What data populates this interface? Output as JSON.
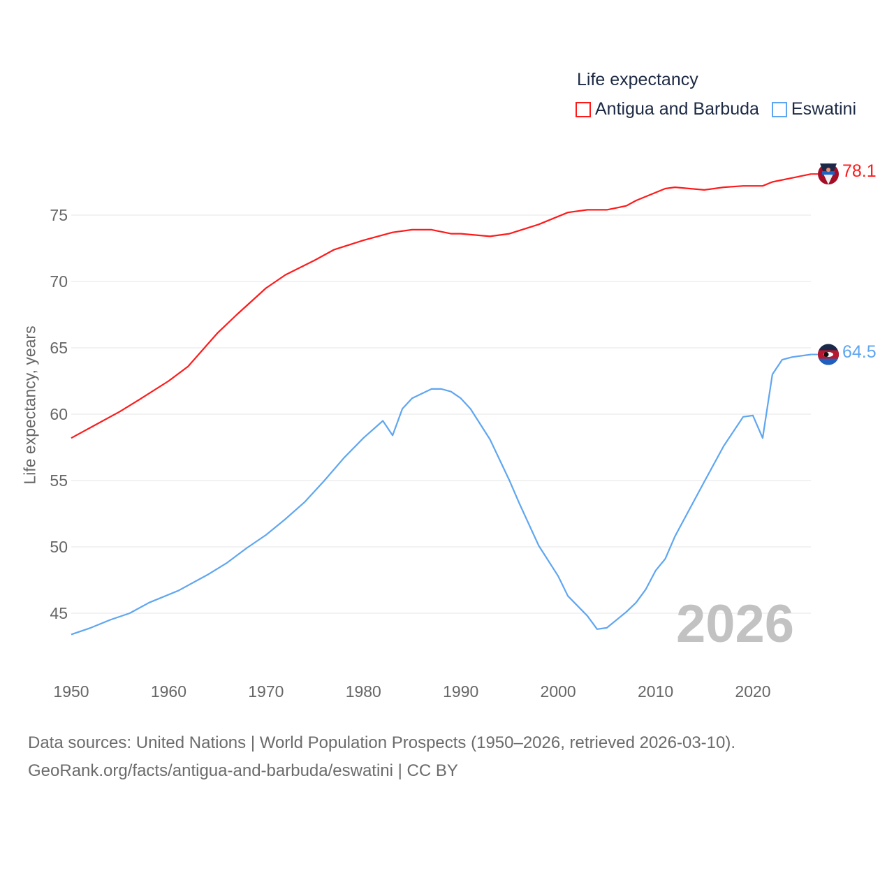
{
  "chart_data": {
    "type": "line",
    "title": "Life expectancy",
    "ylabel": "Life expectancy, years",
    "xlabel": "",
    "xlim": [
      1950,
      2026
    ],
    "ylim": [
      42,
      80
    ],
    "x_ticks": [
      1950,
      1960,
      1970,
      1980,
      1990,
      2000,
      2010,
      2020
    ],
    "y_ticks": [
      45,
      50,
      55,
      60,
      65,
      70,
      75
    ],
    "grid": true,
    "legend_position": "top-right",
    "current_year": "2026",
    "series": [
      {
        "name": "Antigua and Barbuda",
        "color": "#ff1a1a",
        "end_label": "78.1",
        "flag": "antigua-and-barbuda-flag",
        "points": [
          [
            1950,
            58.2
          ],
          [
            1952,
            59.0
          ],
          [
            1955,
            60.2
          ],
          [
            1957,
            61.1
          ],
          [
            1960,
            62.5
          ],
          [
            1962,
            63.6
          ],
          [
            1965,
            66.1
          ],
          [
            1967,
            67.5
          ],
          [
            1970,
            69.5
          ],
          [
            1972,
            70.5
          ],
          [
            1975,
            71.6
          ],
          [
            1977,
            72.4
          ],
          [
            1980,
            73.1
          ],
          [
            1983,
            73.7
          ],
          [
            1985,
            73.9
          ],
          [
            1987,
            73.9
          ],
          [
            1989,
            73.6
          ],
          [
            1990,
            73.6
          ],
          [
            1993,
            73.4
          ],
          [
            1995,
            73.6
          ],
          [
            1998,
            74.3
          ],
          [
            2001,
            75.2
          ],
          [
            2003,
            75.4
          ],
          [
            2005,
            75.4
          ],
          [
            2007,
            75.7
          ],
          [
            2008,
            76.1
          ],
          [
            2011,
            77.0
          ],
          [
            2012,
            77.1
          ],
          [
            2015,
            76.9
          ],
          [
            2017,
            77.1
          ],
          [
            2019,
            77.2
          ],
          [
            2021,
            77.2
          ],
          [
            2022,
            77.5
          ],
          [
            2024,
            77.8
          ],
          [
            2026,
            78.1
          ]
        ]
      },
      {
        "name": "Eswatini",
        "color": "#5fa6f0",
        "end_label": "64.5",
        "flag": "eswatini-flag",
        "points": [
          [
            1950,
            43.4
          ],
          [
            1952,
            43.9
          ],
          [
            1954,
            44.5
          ],
          [
            1956,
            45.0
          ],
          [
            1958,
            45.8
          ],
          [
            1961,
            46.7
          ],
          [
            1964,
            47.9
          ],
          [
            1966,
            48.8
          ],
          [
            1968,
            49.9
          ],
          [
            1970,
            50.9
          ],
          [
            1972,
            52.1
          ],
          [
            1974,
            53.4
          ],
          [
            1976,
            55.0
          ],
          [
            1978,
            56.7
          ],
          [
            1980,
            58.2
          ],
          [
            1982,
            59.5
          ],
          [
            1983,
            58.4
          ],
          [
            1984,
            60.4
          ],
          [
            1985,
            61.2
          ],
          [
            1987,
            61.9
          ],
          [
            1988,
            61.9
          ],
          [
            1989,
            61.7
          ],
          [
            1990,
            61.2
          ],
          [
            1991,
            60.4
          ],
          [
            1993,
            58.1
          ],
          [
            1995,
            55.0
          ],
          [
            1996,
            53.3
          ],
          [
            1998,
            50.1
          ],
          [
            2000,
            47.8
          ],
          [
            2001,
            46.3
          ],
          [
            2003,
            44.8
          ],
          [
            2004,
            43.8
          ],
          [
            2005,
            43.9
          ],
          [
            2007,
            45.1
          ],
          [
            2008,
            45.8
          ],
          [
            2009,
            46.8
          ],
          [
            2010,
            48.2
          ],
          [
            2011,
            49.1
          ],
          [
            2012,
            50.8
          ],
          [
            2015,
            54.9
          ],
          [
            2017,
            57.6
          ],
          [
            2019,
            59.8
          ],
          [
            2020,
            59.9
          ],
          [
            2021,
            58.2
          ],
          [
            2022,
            63.0
          ],
          [
            2023,
            64.1
          ],
          [
            2024,
            64.3
          ],
          [
            2026,
            64.5
          ]
        ]
      }
    ]
  },
  "source": {
    "line1": "Data sources: United Nations | World Population Prospects (1950–2026, retrieved 2026-03-10).",
    "line2": "GeoRank.org/facts/antigua-and-barbuda/eswatini | CC BY"
  }
}
